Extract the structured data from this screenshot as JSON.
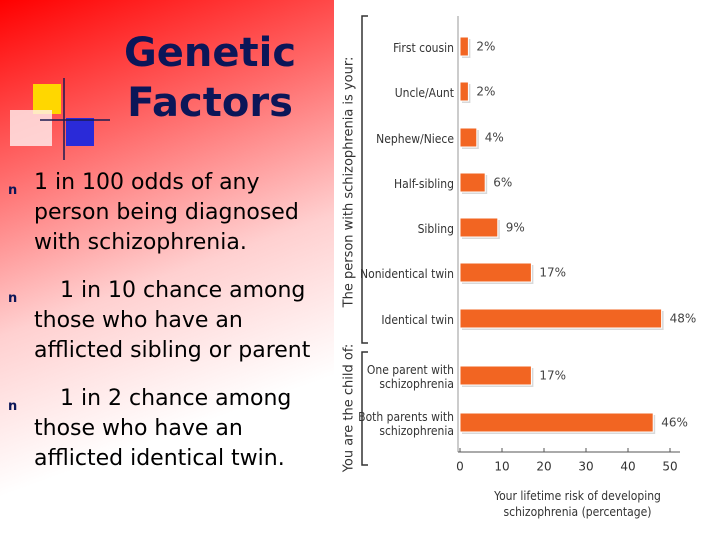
{
  "slide": {
    "title": "Genetic Factors",
    "bullet_marker": "n",
    "bullets": [
      "1 in 100 odds of any person being diagnosed with schizophrenia.",
      "1 in 10 chance among those who have an afflicted sibling or parent",
      "1 in 2 chance among those who have an afflicted identical twin."
    ]
  },
  "chart_data": {
    "type": "hbar",
    "group_labels": [
      "The person with schizophrenia is your:",
      "You are the child of:"
    ],
    "categories": [
      "First cousin",
      "Uncle/Aunt",
      "Nephew/Niece",
      "Half-sibling",
      "Sibling",
      "Nonidentical twin",
      "Identical twin",
      "One parent with schizophrenia",
      "Both parents with schizophrenia"
    ],
    "values": [
      2,
      2,
      4,
      6,
      9,
      17,
      48,
      17,
      46
    ],
    "value_labels": [
      "2%",
      "2%",
      "4%",
      "6%",
      "9%",
      "17%",
      "48%",
      "17%",
      "46%"
    ],
    "color": "#f26522",
    "xlim": [
      0,
      50
    ],
    "xticks": [
      0,
      10,
      20,
      30,
      40,
      50
    ],
    "xlabel": "Your lifetime risk of developing schizophrenia (percentage)"
  }
}
